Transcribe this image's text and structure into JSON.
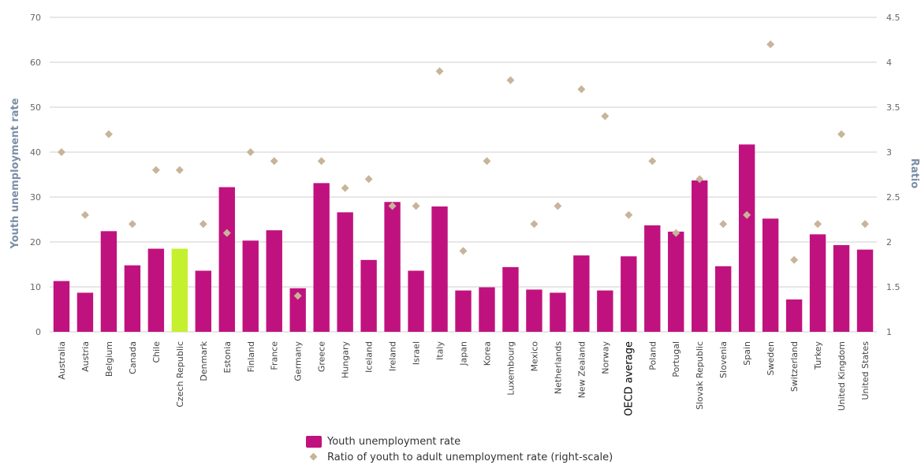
{
  "chart_data": {
    "type": "bar",
    "categories": [
      "Australia",
      "Austria",
      "Belgium",
      "Canada",
      "Chile",
      "Czech Republic",
      "Denmark",
      "Estonia",
      "Finland",
      "France",
      "Germany",
      "Greece",
      "Hungary",
      "Iceland",
      "Ireland",
      "Israel",
      "Italy",
      "Japan",
      "Korea",
      "Luxembourg",
      "Mexico",
      "Netherlands",
      "New Zealand",
      "Norway",
      "OECD average",
      "Poland",
      "Portugal",
      "Slovak Republic",
      "Slovenia",
      "Spain",
      "Sweden",
      "Switzerland",
      "Turkey",
      "United Kingdom",
      "United States"
    ],
    "highlight_category": "Czech Republic",
    "emphasized_category": "OECD average",
    "series": [
      {
        "name": "Youth unemployment rate",
        "type": "bar",
        "axis": "left",
        "color": "#c0127e",
        "highlight_color": "#c5f02e",
        "values": [
          11.3,
          8.7,
          22.4,
          14.8,
          18.5,
          18.5,
          13.6,
          32.2,
          20.3,
          22.6,
          9.7,
          33.1,
          26.6,
          16.0,
          28.9,
          13.6,
          27.9,
          9.2,
          9.9,
          14.4,
          9.4,
          8.7,
          17.0,
          9.2,
          16.8,
          23.7,
          22.3,
          33.7,
          14.6,
          41.7,
          25.2,
          7.2,
          21.7,
          19.3,
          18.3
        ]
      },
      {
        "name": "Ratio of youth to adult unemployment rate (right-scale)",
        "type": "scatter",
        "axis": "right",
        "color": "#c8b49a",
        "values": [
          3.0,
          2.3,
          3.2,
          2.2,
          2.8,
          2.8,
          2.2,
          2.1,
          3.0,
          2.9,
          1.4,
          2.9,
          2.6,
          2.7,
          2.4,
          2.4,
          3.9,
          1.9,
          2.9,
          3.8,
          2.2,
          2.4,
          3.7,
          3.4,
          2.3,
          2.9,
          2.1,
          2.7,
          2.2,
          2.3,
          4.2,
          1.8,
          2.2,
          3.2,
          2.2
        ]
      }
    ],
    "ylabel": "Youth unemployment rate",
    "y2label": "Ratio",
    "ylim": [
      0,
      70
    ],
    "yticks": [
      "0",
      "10",
      "20",
      "30",
      "40",
      "50",
      "60",
      "70"
    ],
    "y2lim": [
      1,
      4.5
    ],
    "y2ticks": [
      "1",
      "1.5",
      "2",
      "2.5",
      "3",
      "3.5",
      "4",
      "4.5"
    ],
    "grid": true,
    "legend_position": "bottom-center"
  }
}
